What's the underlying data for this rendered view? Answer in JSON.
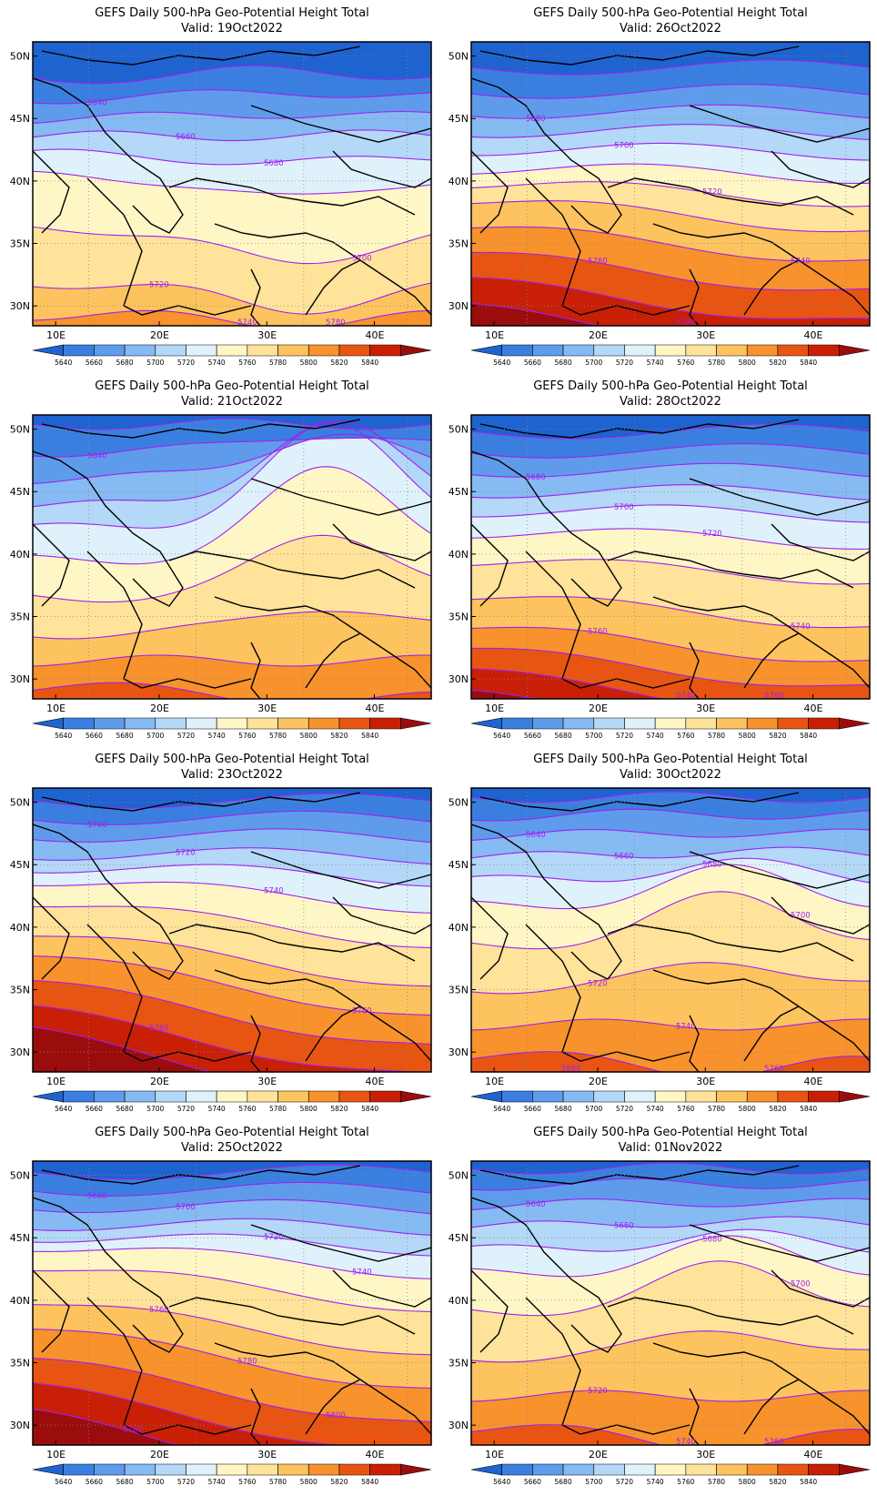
{
  "panel_title": "GEFS Daily 500-hPa Geo-Potential Height Total",
  "valid_prefix": "Valid: ",
  "lon_ticks": [
    "10E",
    "20E",
    "30E",
    "40E"
  ],
  "lat_ticks": [
    "50N",
    "45N",
    "40N",
    "35N",
    "30N"
  ],
  "colorbar": {
    "labels": [
      "5640",
      "5660",
      "5680",
      "5700",
      "5720",
      "5740",
      "5760",
      "5780",
      "5800",
      "5820",
      "5840"
    ],
    "colors": [
      "#1e63cf",
      "#3a7fe0",
      "#5e9ceb",
      "#86baf2",
      "#b4d8f7",
      "#dff2fb",
      "#fff6c6",
      "#ffe39a",
      "#fdc35e",
      "#f7922c",
      "#e85512",
      "#c81f06",
      "#9b0d0d"
    ]
  },
  "contour_color": "#a020f0",
  "panels": [
    {
      "valid": "19Oct2022",
      "contour_labels": [
        "5640",
        "5660",
        "5680",
        "5700",
        "5720",
        "5740",
        "5780"
      ]
    },
    {
      "valid": "26Oct2022",
      "contour_labels": [
        "5680",
        "5700",
        "5720",
        "5740",
        "5760",
        "5780"
      ]
    },
    {
      "valid": "21Oct2022",
      "contour_labels": [
        "5640"
      ]
    },
    {
      "valid": "28Oct2022",
      "contour_labels": [
        "5680",
        "5700",
        "5720",
        "5740",
        "5760",
        "5740",
        "5780"
      ]
    },
    {
      "valid": "23Oct2022",
      "contour_labels": [
        "5700",
        "5720",
        "5740",
        "5760",
        "5760"
      ]
    },
    {
      "valid": "30Oct2022",
      "contour_labels": [
        "5640",
        "5660",
        "5680",
        "5700",
        "5720",
        "5740",
        "5760",
        "5680",
        "5700"
      ]
    },
    {
      "valid": "25Oct2022",
      "contour_labels": [
        "5680",
        "5700",
        "5720",
        "5740",
        "5760",
        "5780",
        "5800",
        "5760"
      ]
    },
    {
      "valid": "01Nov2022",
      "contour_labels": [
        "5640",
        "5660",
        "5680",
        "5700",
        "5720",
        "5740",
        "5760",
        "5700"
      ]
    }
  ]
}
